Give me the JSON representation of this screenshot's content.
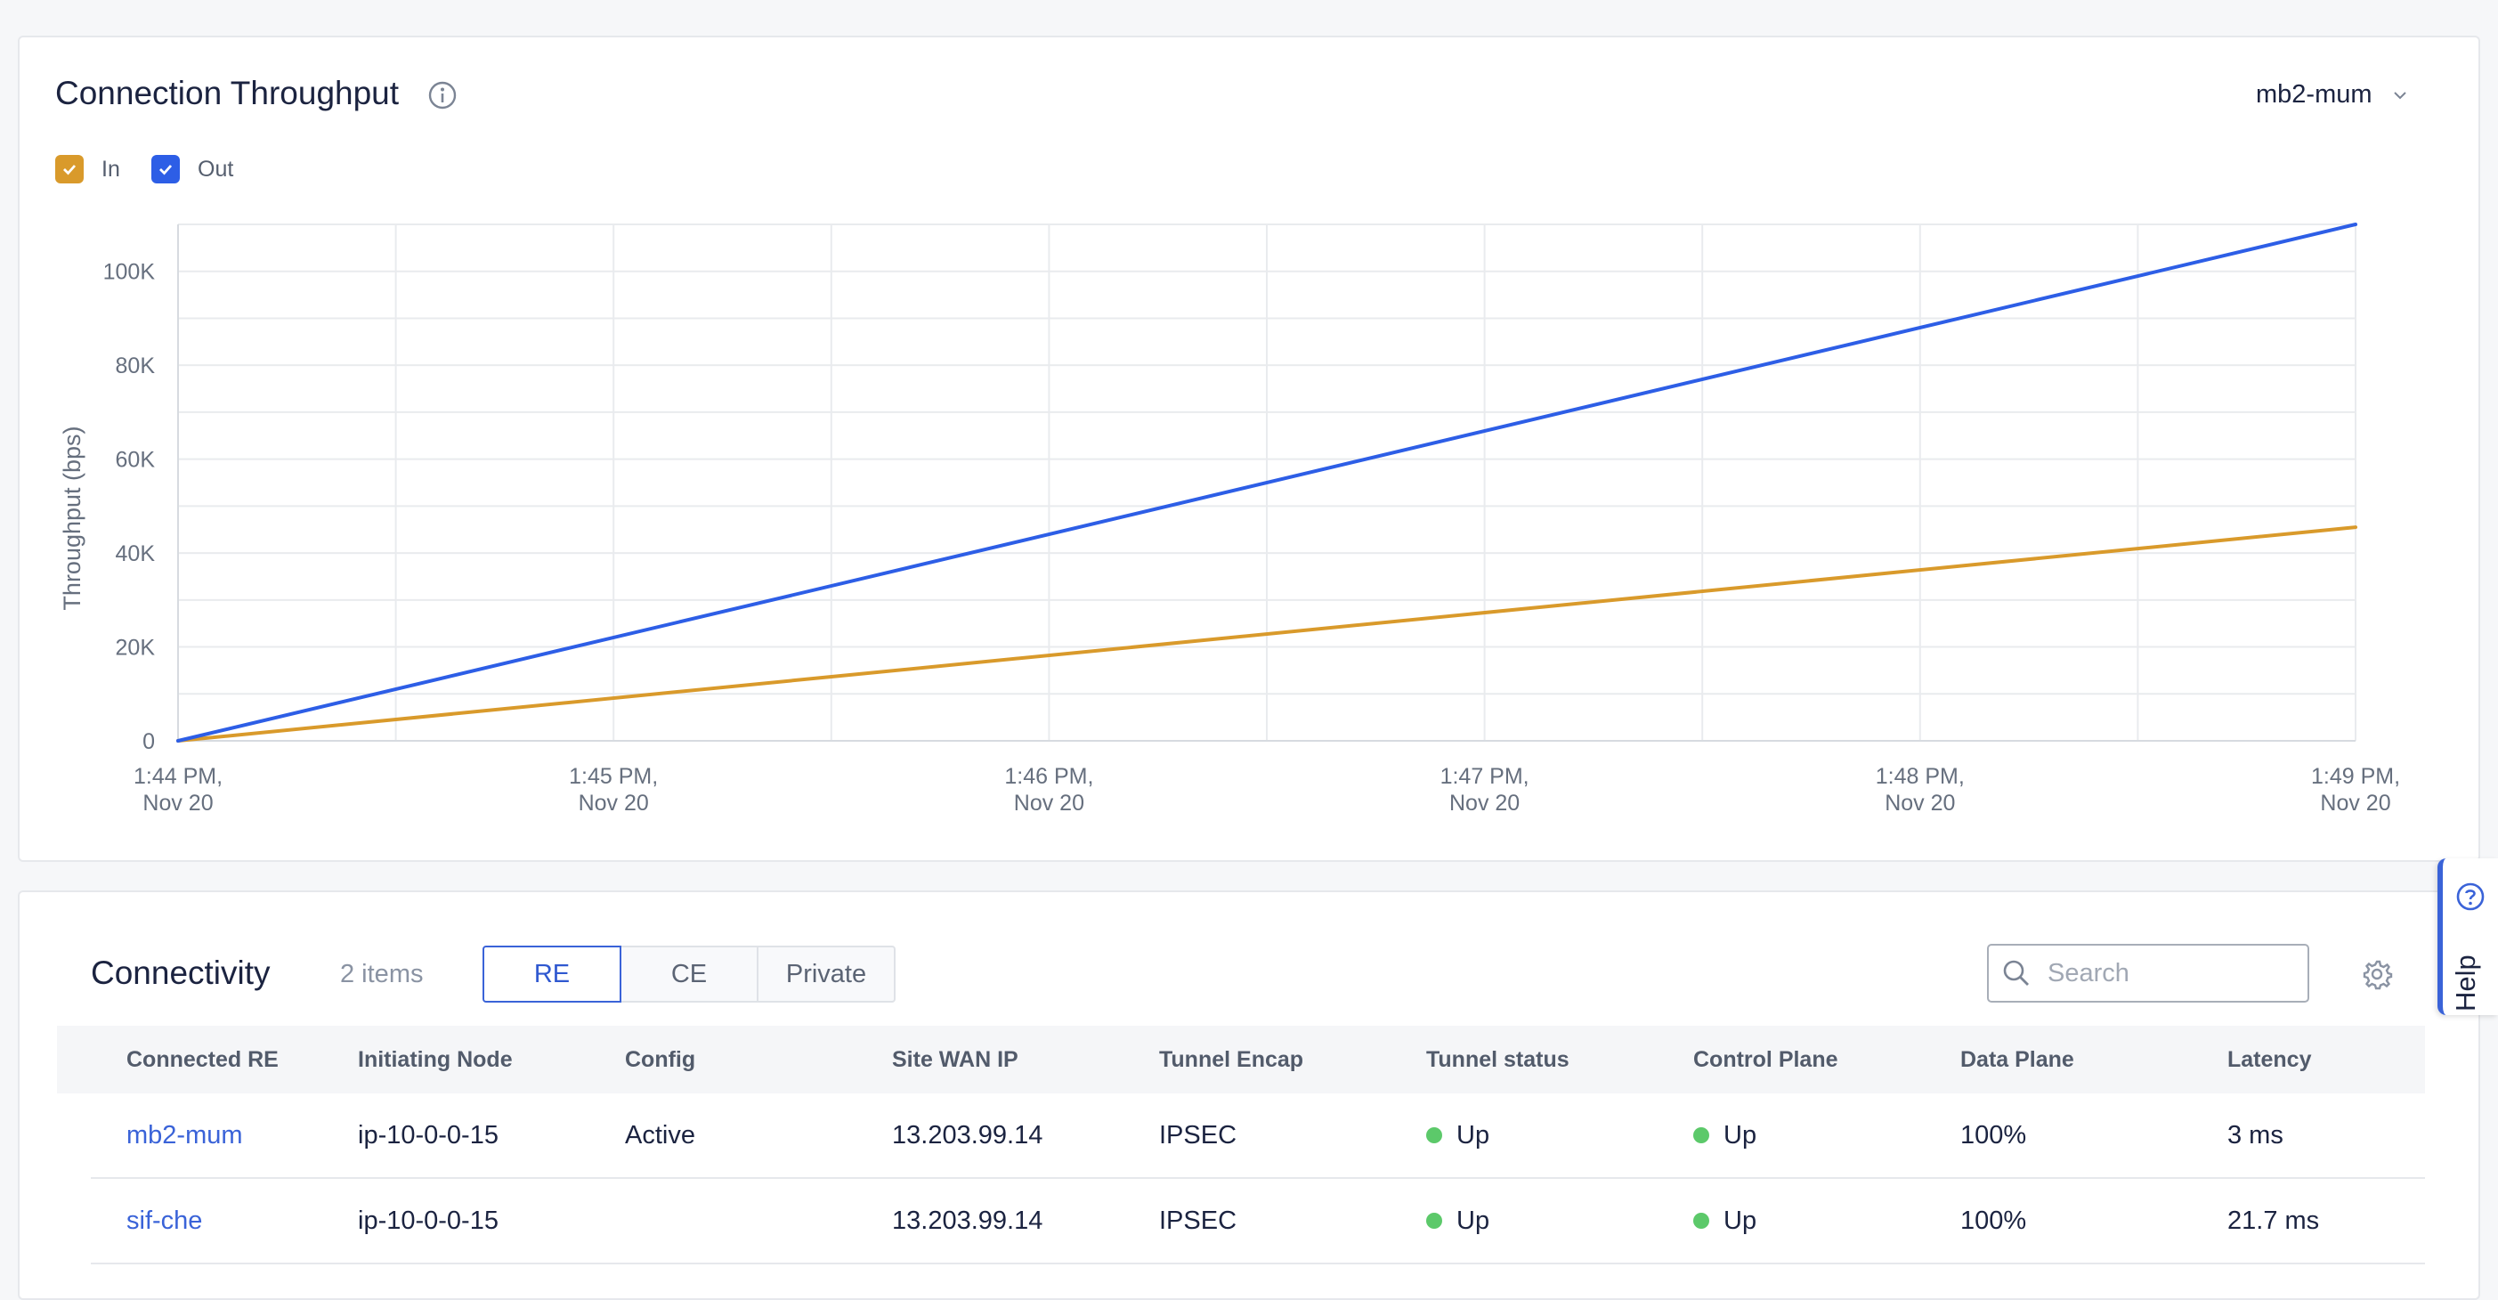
{
  "throughput": {
    "title": "Connection Throughput",
    "dropdown_value": "mb2-mum",
    "legend": [
      {
        "label": "In",
        "checked": true,
        "color": "#d99a2b"
      },
      {
        "label": "Out",
        "checked": true,
        "color": "#2d5ee6"
      }
    ]
  },
  "chart_data": {
    "type": "line",
    "ylabel": "Throughput (bps)",
    "ylim": [
      0,
      110000
    ],
    "y_ticks": [
      "0",
      "20K",
      "40K",
      "60K",
      "80K",
      "100K"
    ],
    "x_ticks": [
      {
        "time": "1:44 PM,",
        "date": "Nov 20"
      },
      {
        "time": "1:45 PM,",
        "date": "Nov 20"
      },
      {
        "time": "1:46 PM,",
        "date": "Nov 20"
      },
      {
        "time": "1:47 PM,",
        "date": "Nov 20"
      },
      {
        "time": "1:48 PM,",
        "date": "Nov 20"
      },
      {
        "time": "1:49 PM,",
        "date": "Nov 20"
      }
    ],
    "x": [
      "1:44 PM",
      "1:49 PM"
    ],
    "series": [
      {
        "name": "In",
        "color": "#d99a2b",
        "values": [
          0,
          45500
        ]
      },
      {
        "name": "Out",
        "color": "#2d5ee6",
        "values": [
          0,
          110000
        ]
      }
    ],
    "grid": true
  },
  "connectivity": {
    "title": "Connectivity",
    "count": "2 items",
    "tabs": [
      {
        "label": "RE",
        "active": true
      },
      {
        "label": "CE",
        "active": false
      },
      {
        "label": "Private",
        "active": false
      }
    ],
    "search_placeholder": "Search",
    "columns": [
      "Connected RE",
      "Initiating Node",
      "Config",
      "Site WAN IP",
      "Tunnel Encap",
      "Tunnel status",
      "Control Plane",
      "Data Plane",
      "Latency"
    ],
    "rows": [
      {
        "connected_re": "mb2-mum",
        "node": "ip-10-0-0-15",
        "config": "Active",
        "wan_ip": "13.203.99.14",
        "encap": "IPSEC",
        "tunnel_status": "Up",
        "control_plane": "Up",
        "data_plane": "100%",
        "latency": "3 ms"
      },
      {
        "connected_re": "sif-che",
        "node": "ip-10-0-0-15",
        "config": "",
        "wan_ip": "13.203.99.14",
        "encap": "IPSEC",
        "tunnel_status": "Up",
        "control_plane": "Up",
        "data_plane": "100%",
        "latency": "21.7 ms"
      }
    ],
    "status_color": "#5cc96a"
  },
  "help": {
    "label": "Help"
  }
}
